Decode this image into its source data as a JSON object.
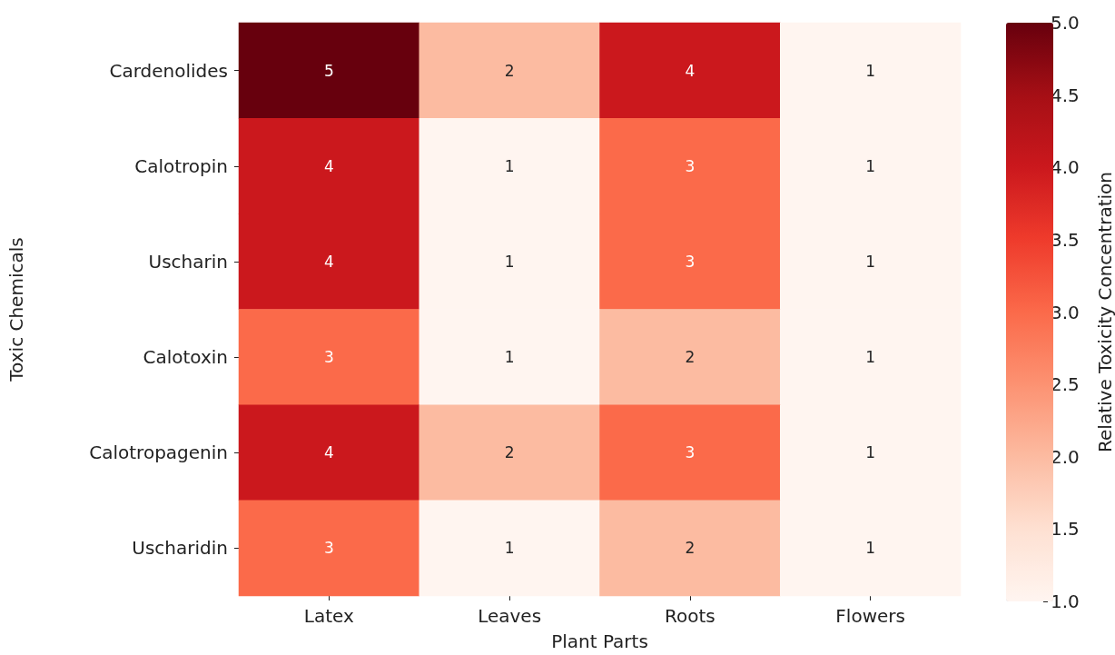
{
  "chart_data": {
    "type": "heatmap",
    "xlabel": "Plant Parts",
    "ylabel": "Toxic Chemicals",
    "clabel": "Relative Toxicity Concentration",
    "categories": [
      "Latex",
      "Leaves",
      "Roots",
      "Flowers"
    ],
    "y_categories": [
      "Cardenolides",
      "Calotropin",
      "Uscharin",
      "Calotoxin",
      "Calotropagenin",
      "Uscharidin"
    ],
    "cells": [
      [
        5,
        2,
        4,
        1
      ],
      [
        4,
        1,
        3,
        1
      ],
      [
        4,
        1,
        3,
        1
      ],
      [
        3,
        1,
        2,
        1
      ],
      [
        4,
        2,
        3,
        1
      ],
      [
        3,
        1,
        2,
        1
      ]
    ],
    "data_labels": true,
    "clim": [
      1,
      5
    ],
    "cticks": [
      {
        "value": 1,
        "label": "1.0"
      },
      {
        "value": 1.5,
        "label": "1.5"
      },
      {
        "value": 2,
        "label": "2.0"
      },
      {
        "value": 2.5,
        "label": "2.5"
      },
      {
        "value": 3,
        "label": "3.0"
      },
      {
        "value": 3.5,
        "label": "3.5"
      },
      {
        "value": 4,
        "label": "4.0"
      },
      {
        "value": 4.5,
        "label": "4.5"
      },
      {
        "value": 5,
        "label": "5.0"
      }
    ]
  }
}
